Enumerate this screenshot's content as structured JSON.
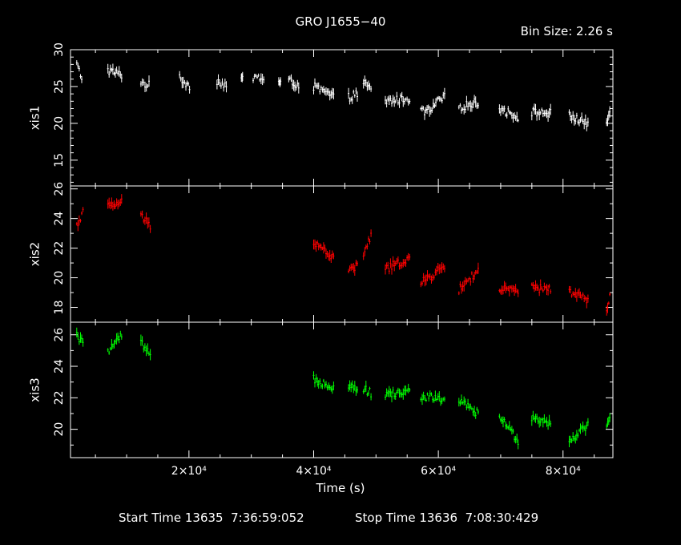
{
  "title": "GRO J1655−40",
  "bin_size_label": "Bin Size: 2.26 s",
  "footer": {
    "start": "Start Time 13635  7:36:59:052",
    "stop": "Stop Time 13636  7:08:30:429"
  },
  "chart_data": {
    "type": "scatter",
    "xlabel": "Time (s)",
    "xlim": [
      1000,
      88000
    ],
    "x_ticks": [
      {
        "value": 20000,
        "label": "2×10⁴"
      },
      {
        "value": 40000,
        "label": "4×10⁴"
      },
      {
        "value": 60000,
        "label": "6×10⁴"
      },
      {
        "value": 80000,
        "label": "8×10⁴"
      }
    ],
    "panels": [
      {
        "name": "xis1",
        "color": "#ffffff",
        "ylim": [
          11.5,
          30
        ],
        "y_ticks": [
          15,
          20,
          25,
          30
        ],
        "segments": [
          {
            "x": [
              2000,
              2800
            ],
            "y": [
              28,
              26.2
            ]
          },
          {
            "x": [
              7000,
              9200
            ],
            "y": [
              27.2,
              26.6
            ]
          },
          {
            "x": [
              12300,
              13600
            ],
            "y": [
              25.5,
              25.2
            ]
          },
          {
            "x": [
              18500,
              20100
            ],
            "y": [
              26.2,
              25.1
            ]
          },
          {
            "x": [
              24500,
              26000
            ],
            "y": [
              25.8,
              25.2
            ]
          },
          {
            "x": [
              28400,
              28600
            ],
            "y": [
              26,
              26
            ]
          },
          {
            "x": [
              30300,
              32000
            ],
            "y": [
              26.3,
              26.1
            ]
          },
          {
            "x": [
              34400,
              34700
            ],
            "y": [
              25.5,
              25.5
            ]
          },
          {
            "x": [
              36000,
              37600
            ],
            "y": [
              25.8,
              25.2
            ]
          },
          {
            "x": [
              40000,
              43200
            ],
            "y": [
              25,
              23.6
            ]
          },
          {
            "x": [
              45600,
              47000
            ],
            "y": [
              23.5,
              24
            ]
          },
          {
            "x": [
              48000,
              49200
            ],
            "y": [
              25.5,
              24.5
            ]
          },
          {
            "x": [
              51500,
              55400
            ],
            "y": [
              23,
              23.4
            ]
          },
          {
            "x": [
              57200,
              59400
            ],
            "y": [
              21.5,
              21.9
            ]
          },
          {
            "x": [
              59200,
              61000
            ],
            "y": [
              22.5,
              23.5
            ]
          },
          {
            "x": [
              63300,
              66400
            ],
            "y": [
              22.2,
              22.9
            ]
          },
          {
            "x": [
              69800,
              72800
            ],
            "y": [
              22,
              20.9
            ]
          },
          {
            "x": [
              75000,
              78000
            ],
            "y": [
              21.5,
              21.4
            ]
          },
          {
            "x": [
              81000,
              84000
            ],
            "y": [
              21,
              20
            ]
          },
          {
            "x": [
              87000,
              87500
            ],
            "y": [
              20.3,
              21
            ]
          }
        ]
      },
      {
        "name": "xis2",
        "color": "#ff0000",
        "ylim": [
          17,
          26.2
        ],
        "y_ticks": [
          18,
          20,
          22,
          24,
          26
        ],
        "segments": [
          {
            "x": [
              2000,
              3000
            ],
            "y": [
              23.5,
              24.5
            ]
          },
          {
            "x": [
              7000,
              9200
            ],
            "y": [
              24.8,
              25.1
            ]
          },
          {
            "x": [
              12300,
              13800
            ],
            "y": [
              24.2,
              23.5
            ]
          },
          {
            "x": [
              40000,
              43200
            ],
            "y": [
              22.5,
              21.3
            ]
          },
          {
            "x": [
              45600,
              47000
            ],
            "y": [
              20.5,
              20.8
            ]
          },
          {
            "x": [
              48000,
              49200
            ],
            "y": [
              21.6,
              22.8
            ]
          },
          {
            "x": [
              51500,
              55400
            ],
            "y": [
              20.6,
              21.3
            ]
          },
          {
            "x": [
              57200,
              61000
            ],
            "y": [
              19.6,
              20.8
            ]
          },
          {
            "x": [
              63300,
              66400
            ],
            "y": [
              19.2,
              20.5
            ]
          },
          {
            "x": [
              69800,
              72800
            ],
            "y": [
              19.2,
              19.1
            ]
          },
          {
            "x": [
              75000,
              78000
            ],
            "y": [
              19.3,
              19.2
            ]
          },
          {
            "x": [
              81000,
              84000
            ],
            "y": [
              19.1,
              18.5
            ]
          },
          {
            "x": [
              87000,
              87500
            ],
            "y": [
              17.6,
              18.8
            ]
          }
        ]
      },
      {
        "name": "xis3",
        "color": "#00ff00",
        "ylim": [
          18.2,
          26.8
        ],
        "y_ticks": [
          20,
          22,
          24,
          26
        ],
        "segments": [
          {
            "x": [
              2000,
              3000
            ],
            "y": [
              26,
              25.4
            ]
          },
          {
            "x": [
              7000,
              9200
            ],
            "y": [
              25,
              25.9
            ]
          },
          {
            "x": [
              12300,
              13800
            ],
            "y": [
              25.5,
              24.6
            ]
          },
          {
            "x": [
              40000,
              43200
            ],
            "y": [
              23.2,
              22.7
            ]
          },
          {
            "x": [
              45600,
              47000
            ],
            "y": [
              22.8,
              22.6
            ]
          },
          {
            "x": [
              48000,
              49200
            ],
            "y": [
              22.6,
              22.3
            ]
          },
          {
            "x": [
              51500,
              55400
            ],
            "y": [
              22.2,
              22.4
            ]
          },
          {
            "x": [
              57200,
              61000
            ],
            "y": [
              22.1,
              21.9
            ]
          },
          {
            "x": [
              63300,
              66400
            ],
            "y": [
              21.8,
              21
            ]
          },
          {
            "x": [
              69800,
              72800
            ],
            "y": [
              20.8,
              19.3
            ]
          },
          {
            "x": [
              75000,
              78000
            ],
            "y": [
              20.8,
              20.4
            ]
          },
          {
            "x": [
              81000,
              84000
            ],
            "y": [
              19.3,
              20.3
            ]
          },
          {
            "x": [
              87000,
              87500
            ],
            "y": [
              20,
              20.8
            ]
          }
        ]
      }
    ]
  }
}
